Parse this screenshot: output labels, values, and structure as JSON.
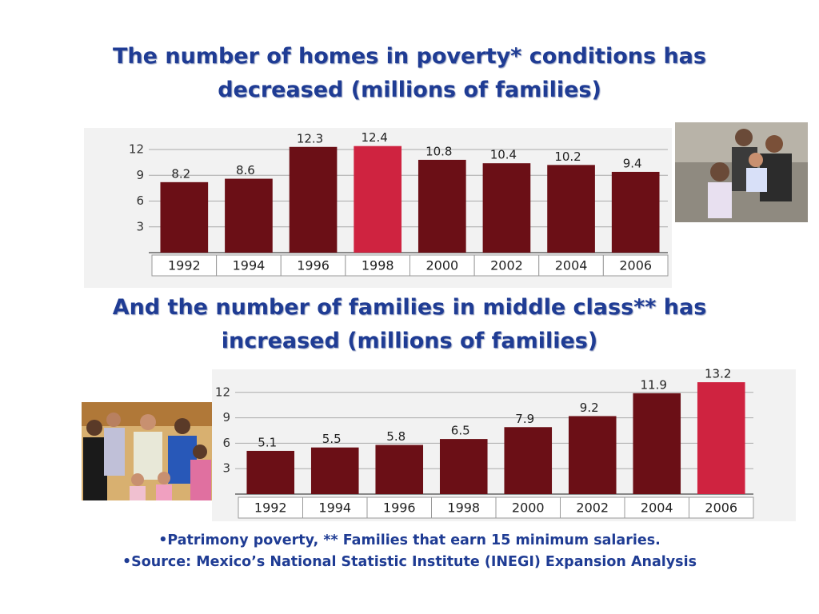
{
  "chart_data": [
    {
      "type": "bar",
      "title": "The number of homes in poverty* conditions has decreased (millions of families)",
      "categories": [
        "1992",
        "1994",
        "1996",
        "1998",
        "2000",
        "2002",
        "2004",
        "2006"
      ],
      "values": [
        8.2,
        8.6,
        12.3,
        12.4,
        10.8,
        10.4,
        10.2,
        9.4
      ],
      "colors": [
        "#6b0f16",
        "#6b0f16",
        "#6b0f16",
        "#cf2340",
        "#6b0f16",
        "#6b0f16",
        "#6b0f16",
        "#6b0f16"
      ],
      "ylim": [
        0,
        13
      ],
      "yticks": [
        3,
        6,
        9,
        12
      ],
      "grid": true
    },
    {
      "type": "bar",
      "title": "And the number of families in middle class** has increased (millions of families)",
      "categories": [
        "1992",
        "1994",
        "1996",
        "1998",
        "2000",
        "2002",
        "2004",
        "2006"
      ],
      "values": [
        5.1,
        5.5,
        5.8,
        6.5,
        7.9,
        9.2,
        11.9,
        13.2
      ],
      "colors": [
        "#6b0f16",
        "#6b0f16",
        "#6b0f16",
        "#6b0f16",
        "#6b0f16",
        "#6b0f16",
        "#6b0f16",
        "#cf2340"
      ],
      "ylim": [
        0,
        14
      ],
      "yticks": [
        3,
        6,
        9,
        12
      ],
      "grid": true
    }
  ],
  "footnotes": [
    "•Patrimony poverty, ** Families that earn 15 minimum salaries.",
    "•Source: Mexico’s  National Statistic Institute (INEGI) Expansion Analysis"
  ]
}
